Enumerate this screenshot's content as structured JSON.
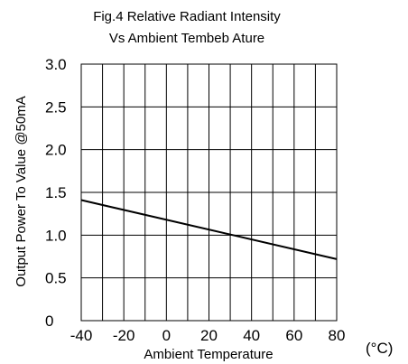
{
  "chart_data": {
    "type": "line",
    "title": [
      "Fig.4 Relative Radiant Intensity",
      "Vs Ambient Tembeb Ature"
    ],
    "xlabel": "Ambient Temperature",
    "xunit": "(°C)",
    "ylabel": "Output Power To Value @50mA",
    "xlim": [
      -40,
      80
    ],
    "ylim": [
      0,
      3.0
    ],
    "x_ticks": [
      "-40",
      "-20",
      "0",
      "20",
      "40",
      "60",
      "80"
    ],
    "y_ticks": [
      "0",
      "0.5",
      "1.0",
      "1.5",
      "2.0",
      "2.5",
      "3.0"
    ],
    "grid": true,
    "series": [
      {
        "x": [
          -40,
          80
        ],
        "y": [
          1.41,
          0.72
        ]
      }
    ]
  }
}
